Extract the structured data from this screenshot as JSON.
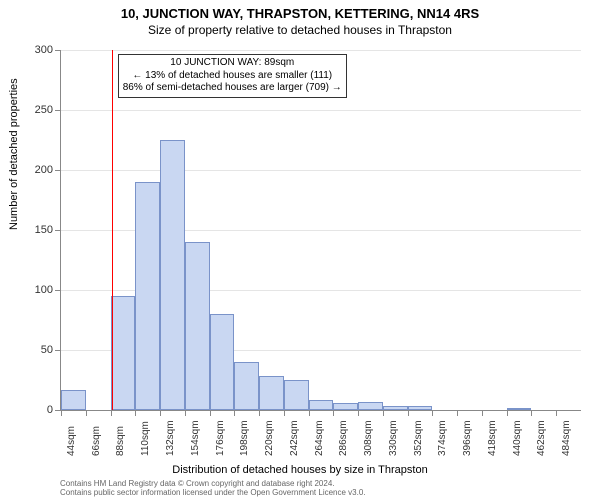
{
  "title_main": "10, JUNCTION WAY, THRAPSTON, KETTERING, NN14 4RS",
  "title_sub": "Size of property relative to detached houses in Thrapston",
  "y_axis_title": "Number of detached properties",
  "x_axis_title": "Distribution of detached houses by size in Thrapston",
  "chart": {
    "type": "histogram",
    "ylim": [
      0,
      300
    ],
    "ytick_step": 50,
    "y_ticks": [
      0,
      50,
      100,
      150,
      200,
      250,
      300
    ],
    "x_labels": [
      "44sqm",
      "66sqm",
      "88sqm",
      "110sqm",
      "132sqm",
      "154sqm",
      "176sqm",
      "198sqm",
      "220sqm",
      "242sqm",
      "264sqm",
      "286sqm",
      "308sqm",
      "330sqm",
      "352sqm",
      "374sqm",
      "396sqm",
      "418sqm",
      "440sqm",
      "462sqm",
      "484sqm"
    ],
    "values": [
      17,
      0,
      95,
      190,
      225,
      140,
      80,
      40,
      28,
      25,
      8,
      6,
      7,
      3,
      3,
      0,
      0,
      0,
      1,
      0,
      0
    ],
    "bar_color": "#c9d7f2",
    "bar_border": "#7a93c9",
    "background_color": "#ffffff",
    "grid_color": "#e5e5e5",
    "axis_color": "#888888",
    "bar_width_ratio": 1.0,
    "ref_line_x_index": 2.05,
    "ref_line_color": "#ff0000",
    "label_fontsize": 11,
    "tick_fontsize": 10
  },
  "annotation": {
    "line1": "10 JUNCTION WAY: 89sqm",
    "line2": "← 13% of detached houses are smaller (111)",
    "line3": "86% of semi-detached houses are larger (709) →",
    "box_border": "#333333",
    "box_bg": "#ffffff"
  },
  "footer": {
    "line1": "Contains HM Land Registry data © Crown copyright and database right 2024.",
    "line2": "Contains public sector information licensed under the Open Government Licence v3.0."
  }
}
